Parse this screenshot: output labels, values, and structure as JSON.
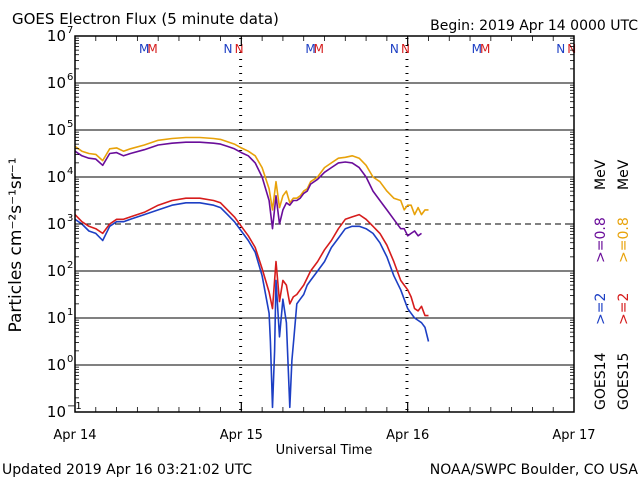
{
  "header": {
    "title": "GOES Electron Flux (5 minute data)",
    "begin": "Begin: 2019 Apr 14 0000 UTC"
  },
  "footer": {
    "updated": "Updated 2019 Apr 16 03:21:02 UTC",
    "credit": "NOAA/SWPC Boulder, CO USA"
  },
  "colors": {
    "goes14_2mev": "#1d3fc4",
    "goes14_08mev": "#6a0d9a",
    "goes15_2mev": "#d61c1c",
    "goes15_08mev": "#e8a20a",
    "axis": "#000000"
  },
  "chart_data": {
    "type": "line",
    "title": "GOES Electron Flux (5 minute data)",
    "xlabel": "Universal Time",
    "ylabel": "Particles cm⁻²s⁻¹sr⁻¹",
    "y_scale": "log",
    "xlim": [
      0,
      72
    ],
    "ylim_exponent": [
      -1,
      7
    ],
    "x_ticks": [
      {
        "label": "Apr 14",
        "hour": 0
      },
      {
        "label": "Apr 15",
        "hour": 24
      },
      {
        "label": "Apr 16",
        "hour": 48
      },
      {
        "label": "Apr 17",
        "hour": 72
      }
    ],
    "y_ticks": [
      {
        "base": "10",
        "exp": "7",
        "value": 7
      },
      {
        "base": "10",
        "exp": "6",
        "value": 6
      },
      {
        "base": "10",
        "exp": "5",
        "value": 5
      },
      {
        "base": "10",
        "exp": "4",
        "value": 4
      },
      {
        "base": "10",
        "exp": "3",
        "value": 3
      },
      {
        "base": "10",
        "exp": "2",
        "value": 2
      },
      {
        "base": "10",
        "exp": "1",
        "value": 1
      },
      {
        "base": "10",
        "exp": "0",
        "value": 0
      },
      {
        "base": "10",
        "exp": "−1",
        "value": -1
      }
    ],
    "alert_threshold_exponent": 3,
    "markers": [
      {
        "label": "M",
        "hour": 10.1,
        "color": "#1d3fc4"
      },
      {
        "label": "M",
        "hour": 11.3,
        "color": "#d61c1c"
      },
      {
        "label": "N",
        "hour": 22.3,
        "color": "#1d3fc4"
      },
      {
        "label": "N",
        "hour": 23.9,
        "color": "#d61c1c"
      },
      {
        "label": "M",
        "hour": 34.1,
        "color": "#1d3fc4"
      },
      {
        "label": "M",
        "hour": 35.3,
        "color": "#d61c1c"
      },
      {
        "label": "N",
        "hour": 46.3,
        "color": "#1d3fc4"
      },
      {
        "label": "N",
        "hour": 47.9,
        "color": "#d61c1c"
      },
      {
        "label": "M",
        "hour": 58.1,
        "color": "#1d3fc4"
      },
      {
        "label": "M",
        "hour": 59.3,
        "color": "#d61c1c"
      },
      {
        "label": "N",
        "hour": 70.3,
        "color": "#1d3fc4"
      },
      {
        "label": "N",
        "hour": 71.9,
        "color": "#d61c1c"
      }
    ],
    "midnight_markers": [
      {
        "hour": 23.9,
        "label": "Apr 15 satellite midnight"
      },
      {
        "hour": 47.9,
        "label": "Apr 16 satellite midnight"
      }
    ],
    "legend": [
      {
        "satellite": "GOES14",
        "energy": ">=2",
        "color": "#1d3fc4"
      },
      {
        "satellite": "GOES15",
        "energy": ">=2",
        "color": "#d61c1c"
      },
      {
        "satellite": "GOES14",
        "energy": ">=0.8",
        "unit": "MeV",
        "color": "#6a0d9a"
      },
      {
        "satellite": "GOES15",
        "energy": ">=0.8",
        "unit": "MeV",
        "color": "#e8a20a"
      }
    ],
    "legend_labels": {
      "goes14": "GOES14",
      "goes15": "GOES15",
      "e2": ">=2",
      "e08": ">=0.8",
      "mev": "MeV"
    },
    "series": [
      {
        "name": "GOES15 >=0.8 MeV",
        "color": "#e8a20a",
        "x": [
          0,
          1,
          2,
          3,
          4,
          5,
          6,
          7,
          8,
          10,
          12,
          14,
          16,
          18,
          20,
          21,
          22,
          23,
          24,
          25,
          26,
          27,
          28,
          28.5,
          29,
          29.5,
          30,
          30.5,
          31,
          31.5,
          32,
          32.5,
          33,
          33.5,
          34,
          35,
          36,
          37,
          38,
          39,
          40,
          41,
          42,
          43,
          44,
          45,
          46,
          47,
          47.5,
          48,
          48.5,
          49,
          49.5,
          50,
          50.5,
          51
        ],
        "log10": [
          4.65,
          4.55,
          4.5,
          4.48,
          4.35,
          4.6,
          4.62,
          4.55,
          4.6,
          4.68,
          4.78,
          4.82,
          4.84,
          4.84,
          4.82,
          4.8,
          4.75,
          4.7,
          4.62,
          4.55,
          4.45,
          4.2,
          3.75,
          3.3,
          3.9,
          3.35,
          3.6,
          3.7,
          3.45,
          3.55,
          3.55,
          3.6,
          3.7,
          3.75,
          3.9,
          4.0,
          4.2,
          4.3,
          4.4,
          4.42,
          4.45,
          4.4,
          4.25,
          4.0,
          3.9,
          3.7,
          3.55,
          3.5,
          3.3,
          3.4,
          3.4,
          3.2,
          3.35,
          3.2,
          3.3,
          3.3
        ]
      },
      {
        "name": "GOES14 >=0.8 MeV",
        "color": "#6a0d9a",
        "x": [
          0,
          1,
          2,
          3,
          4,
          5,
          6,
          7,
          8,
          10,
          12,
          14,
          16,
          18,
          20,
          21,
          22,
          23,
          24,
          25,
          26,
          27,
          28,
          28.5,
          29,
          29.5,
          30,
          30.5,
          31,
          31.5,
          32,
          32.5,
          33,
          33.5,
          34,
          35,
          36,
          37,
          38,
          39,
          40,
          41,
          42,
          43,
          44,
          45,
          46,
          47,
          47.5,
          48,
          48.5,
          49,
          49.5,
          50
        ],
        "log10": [
          4.55,
          4.45,
          4.4,
          4.38,
          4.25,
          4.5,
          4.52,
          4.45,
          4.5,
          4.58,
          4.68,
          4.72,
          4.74,
          4.74,
          4.72,
          4.7,
          4.65,
          4.6,
          4.52,
          4.45,
          4.3,
          4.0,
          3.5,
          2.9,
          3.6,
          3.0,
          3.3,
          3.45,
          3.4,
          3.5,
          3.5,
          3.55,
          3.65,
          3.7,
          3.85,
          3.95,
          4.1,
          4.2,
          4.3,
          4.32,
          4.3,
          4.2,
          4.0,
          3.7,
          3.5,
          3.3,
          3.1,
          2.9,
          2.9,
          2.75,
          2.8,
          2.85,
          2.75,
          2.8
        ]
      },
      {
        "name": "GOES15 >=2 MeV",
        "color": "#d61c1c",
        "x": [
          0,
          1,
          2,
          3,
          4,
          5,
          6,
          7,
          8,
          10,
          12,
          14,
          16,
          18,
          20,
          21,
          22,
          23,
          24,
          25,
          26,
          27,
          28,
          28.5,
          29,
          29.5,
          30,
          30.5,
          31,
          31.5,
          32,
          32.5,
          33,
          33.5,
          34,
          35,
          36,
          37,
          38,
          39,
          40,
          41,
          42,
          43,
          44,
          45,
          46,
          47,
          47.5,
          48,
          48.5,
          49,
          49.5,
          50,
          50.5,
          51
        ],
        "log10": [
          3.2,
          3.05,
          2.95,
          2.9,
          2.8,
          3.0,
          3.1,
          3.1,
          3.15,
          3.25,
          3.4,
          3.5,
          3.55,
          3.55,
          3.5,
          3.45,
          3.3,
          3.15,
          2.95,
          2.75,
          2.5,
          2.05,
          1.55,
          1.2,
          2.2,
          1.35,
          1.8,
          1.7,
          1.3,
          1.45,
          1.5,
          1.6,
          1.7,
          1.85,
          2.0,
          2.2,
          2.45,
          2.65,
          2.9,
          3.1,
          3.15,
          3.2,
          3.1,
          2.95,
          2.8,
          2.55,
          2.2,
          1.8,
          1.7,
          1.6,
          1.45,
          1.2,
          1.15,
          1.25,
          1.05,
          1.05
        ]
      },
      {
        "name": "GOES14 >=2 MeV",
        "color": "#1d3fc4",
        "x": [
          0,
          1,
          2,
          3,
          4,
          5,
          6,
          7,
          8,
          10,
          12,
          14,
          16,
          18,
          20,
          21,
          22,
          23,
          24,
          25,
          26,
          27,
          28,
          28.2,
          28.5,
          28.8,
          29,
          29.5,
          30,
          30.5,
          31,
          31.3,
          31.6,
          32,
          32.5,
          33,
          33.5,
          34,
          35,
          36,
          37,
          38,
          39,
          40,
          41,
          42,
          43,
          44,
          45,
          46,
          47,
          47.5,
          48,
          48.5,
          49,
          49.5,
          50,
          50.5,
          51
        ],
        "log10": [
          3.1,
          3.0,
          2.85,
          2.8,
          2.65,
          2.95,
          3.05,
          3.05,
          3.1,
          3.2,
          3.3,
          3.4,
          3.45,
          3.45,
          3.4,
          3.35,
          3.2,
          3.05,
          2.85,
          2.65,
          2.4,
          1.9,
          1.1,
          0.5,
          -0.9,
          0.3,
          1.8,
          0.6,
          1.4,
          0.9,
          -0.9,
          0.1,
          0.6,
          1.3,
          1.4,
          1.5,
          1.7,
          1.8,
          2.0,
          2.2,
          2.5,
          2.7,
          2.9,
          2.95,
          2.95,
          2.9,
          2.8,
          2.6,
          2.3,
          1.9,
          1.6,
          1.4,
          1.2,
          1.1,
          1.0,
          0.95,
          0.9,
          0.8,
          0.5
        ]
      }
    ]
  }
}
